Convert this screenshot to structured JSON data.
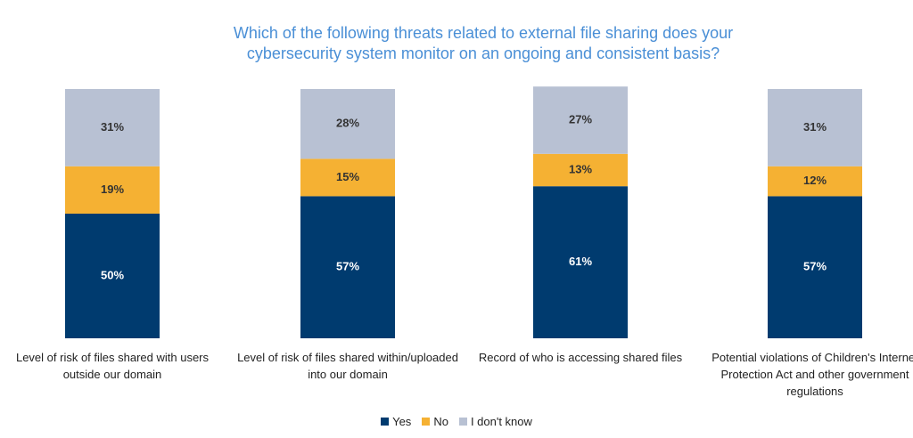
{
  "chart_data": {
    "type": "stacked_bar",
    "title": "Which of the following threats related to external file sharing does your cybersecurity system monitor on an ongoing and consistent basis?",
    "categories": [
      "Level of risk of files shared with users outside our domain",
      "Level of risk of files shared within/uploaded into our domain",
      "Record of who is accessing shared files",
      "Potential violations of Children's Internet Protection Act and other government regulations"
    ],
    "series": [
      {
        "name": "Yes",
        "color": "#003b6f",
        "values": [
          50,
          57,
          61,
          57
        ],
        "value_labels": [
          "50%",
          "57%",
          "61%",
          "57%"
        ]
      },
      {
        "name": "No",
        "color": "#f5b133",
        "values": [
          19,
          15,
          13,
          12
        ],
        "value_labels": [
          "19%",
          "15%",
          "13%",
          "12%"
        ]
      },
      {
        "name": "I don't know",
        "color": "#b8c1d3",
        "values": [
          31,
          28,
          27,
          31
        ],
        "value_labels": [
          "31%",
          "28%",
          "27%",
          "31%"
        ]
      }
    ],
    "legend": "bottom"
  }
}
